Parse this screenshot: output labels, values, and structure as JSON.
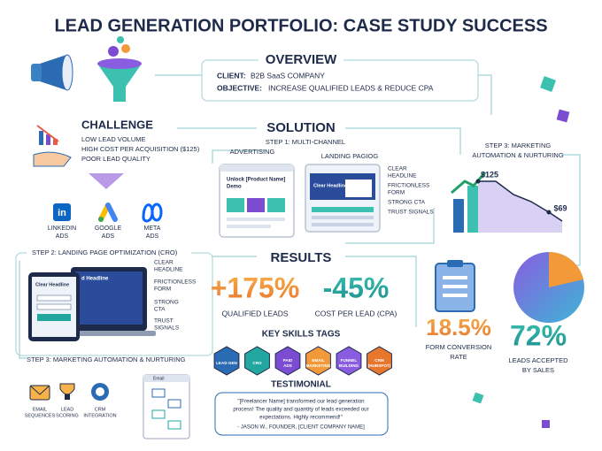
{
  "header": {
    "title": "LEAD GENERATION PORTFOLIO: CASE STUDY SUCCESS"
  },
  "overview": {
    "heading": "OVERVIEW",
    "client_label": "CLIENT:",
    "client": "B2B SaaS COMPANY",
    "objective_label": "OBJECTIVE:",
    "objective": "INCREASE QUALIFIED LEADS & REDUCE CPA"
  },
  "challenge": {
    "heading": "CHALLENGE",
    "items": [
      "LOW LEAD VOLUME",
      "HIGH COST PER ACQUISITION ($125)",
      "POOR LEAD QUALITY"
    ]
  },
  "channels": [
    {
      "logo": "in",
      "label": [
        "LINKEDIN",
        "ADS"
      ]
    },
    {
      "label": [
        "GOOGLE",
        "ADS"
      ]
    },
    {
      "label": [
        "META",
        "ADS"
      ]
    }
  ],
  "solution": {
    "heading": "SOLUTION",
    "step1": [
      "STEP 1: MULTI-CHANNEL",
      "ADVERTISING"
    ],
    "landing_label": "LANDING PAGIOG",
    "ad_mock": [
      "Unlock [Product Name]",
      "Demo"
    ],
    "landing_mock": "Clear Headline",
    "callouts": [
      [
        "CLEAR",
        "HEADLINE"
      ],
      [
        "FRICTIONLESS",
        "FORM"
      ],
      [
        "STRONG CTA"
      ],
      [
        "TRUST SIGNALS"
      ]
    ],
    "step3": [
      "STEP 3: MARKETING",
      "AUTOMATION & NURTURING"
    ],
    "chart_labels": [
      "$125",
      "$69"
    ]
  },
  "step2": {
    "heading": "STEP 2: LANDING PAGE OPTIMIZATION (CRO)",
    "mock_front": "Clear Headline",
    "mock_back": "d Headline",
    "callouts": [
      [
        "CLEAR",
        "HEADLINE"
      ],
      [
        "FRICTIONLESS",
        "FORM"
      ],
      [
        "STRONG",
        "CTA"
      ],
      [
        "TRUST",
        "SIGNALS"
      ]
    ]
  },
  "step3": {
    "heading": "STEP 3: MARKETING AUTOMATION & NURTURING",
    "icons": [
      [
        "EMAIL",
        "SEQUENCES"
      ],
      [
        "LEAD",
        "SCORING"
      ],
      [
        "CRM",
        "INTEGRATION"
      ]
    ],
    "mock": "Email"
  },
  "results": {
    "heading": "RESULTS",
    "metrics": [
      {
        "value": "+175%",
        "label": [
          "QUALIFIED LEADS"
        ]
      },
      {
        "value": "-45%",
        "label": [
          "COST PER LEAD (CPA)"
        ]
      },
      {
        "value": "18.5%",
        "label": [
          "FORM CONVERSION",
          "RATE"
        ]
      },
      {
        "value": "72%",
        "label": [
          "LEADS ACCEPTED",
          "BY SALES"
        ]
      }
    ]
  },
  "skills": {
    "heading": "KEY SKILLS TAGS",
    "tags": [
      [
        "LEAD GEN"
      ],
      [
        "CRO"
      ],
      [
        "PAID",
        "ADS"
      ],
      [
        "EMAIL",
        "MARKETING"
      ],
      [
        "FUNNEL",
        "BUILDING"
      ],
      [
        "CRM",
        "(HUBSPOT)"
      ]
    ]
  },
  "testimonial": {
    "heading": "TESTIMONIAL",
    "quote": [
      "\"[Freelancer Name] transformed our lead generation",
      "process! The quality and quantity of leads exceeded our",
      "expectations. Highly recommend!\""
    ],
    "author": "- JASON W., FOUNDER, [CLIENT COMPANY NAME]"
  }
}
